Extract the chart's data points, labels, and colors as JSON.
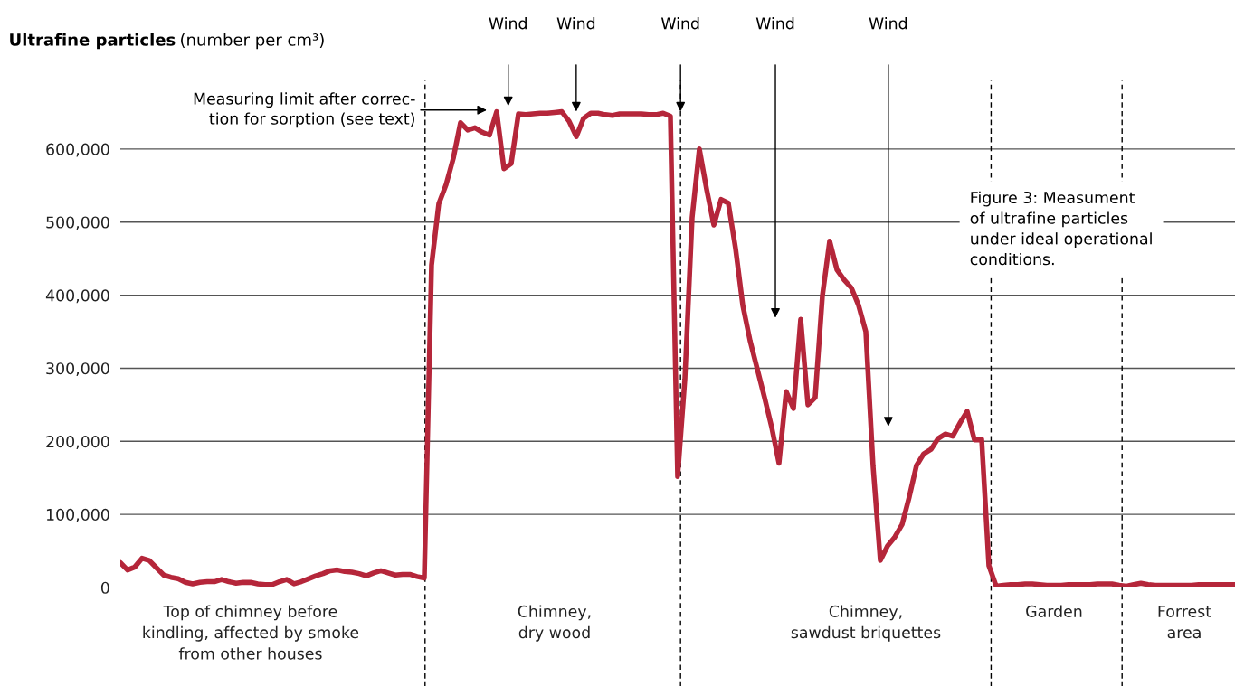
{
  "chart_data": {
    "type": "line",
    "title": "Ultrafine particles",
    "ylabel": "(number per cm³)",
    "categories": [
      null,
      null,
      null,
      null,
      null,
      null,
      null,
      null,
      null,
      null,
      null,
      null,
      null,
      null,
      null,
      null,
      null,
      null,
      "Top of chimney before\nkindling, affected by smoke\nfrom other houses",
      null,
      null,
      null,
      null,
      null,
      null,
      null,
      null,
      null,
      null,
      null,
      null,
      null,
      null,
      null,
      null,
      null,
      null,
      null,
      null,
      null,
      null,
      null,
      null,
      null,
      null,
      null,
      null,
      null,
      null,
      null,
      null,
      null,
      null,
      null,
      null,
      null,
      null,
      null,
      null,
      null,
      "Chimney,\ndry wood",
      null,
      null,
      null,
      null,
      null,
      null,
      null,
      null,
      null,
      null,
      null,
      null,
      null,
      null,
      null,
      null,
      null,
      null,
      null,
      null,
      null,
      null,
      null,
      null,
      null,
      null,
      null,
      null,
      null,
      null,
      null,
      null,
      null,
      null,
      null,
      null,
      null,
      null,
      null,
      null,
      null,
      null,
      "Chimney,\nsawdust briquettes",
      null,
      null,
      null,
      null,
      null,
      null,
      null,
      null,
      null,
      null,
      null,
      null,
      null,
      null,
      null,
      null,
      null,
      null,
      null,
      null,
      null,
      null,
      null,
      null,
      null,
      "Garden",
      null,
      null,
      null,
      null,
      null,
      null,
      null,
      null,
      null,
      null,
      null,
      null,
      null,
      null,
      null,
      null,
      null,
      "Forrest\narea",
      null,
      null,
      null,
      null,
      null,
      null,
      null
    ],
    "values": [
      34000,
      24000,
      28000,
      40000,
      37000,
      27000,
      17000,
      14000,
      12000,
      7000,
      5000,
      7000,
      8000,
      8000,
      11000,
      8000,
      6000,
      7000,
      7000,
      5000,
      4000,
      4000,
      8000,
      11000,
      5000,
      8000,
      12000,
      16000,
      19000,
      23000,
      24000,
      22000,
      21000,
      19000,
      16000,
      20000,
      23000,
      20000,
      17000,
      18000,
      18000,
      15000,
      13000,
      441000,
      525000,
      551000,
      587000,
      636000,
      626000,
      629000,
      623000,
      619000,
      651000,
      573000,
      580000,
      648000,
      647000,
      648000,
      649000,
      649000,
      650000,
      651000,
      638000,
      617000,
      642000,
      649000,
      649000,
      647000,
      646000,
      648000,
      648000,
      648000,
      648000,
      647000,
      647000,
      649000,
      645000,
      152000,
      285000,
      506000,
      600000,
      545000,
      496000,
      531000,
      526000,
      464000,
      386000,
      338000,
      299000,
      260000,
      219000,
      170000,
      268000,
      245000,
      367000,
      250000,
      260000,
      399000,
      474000,
      435000,
      421000,
      410000,
      386000,
      350000,
      166000,
      37000,
      57000,
      69000,
      86000,
      124000,
      167000,
      183000,
      189000,
      204000,
      210000,
      207000,
      225000,
      241000,
      202000,
      203000,
      30000,
      2000,
      3000,
      4000,
      4000,
      5000,
      5000,
      4000,
      3000,
      3000,
      3000,
      4000,
      4000,
      4000,
      4000,
      5000,
      5000,
      5000,
      3000,
      2000,
      4000,
      6000,
      4000,
      3000,
      3000,
      3000,
      3000,
      3000,
      3000,
      4000,
      4000,
      4000,
      4000,
      4000,
      4000
    ],
    "color": "#b5263a",
    "line_style": "solid",
    "marker": "none",
    "ylim": [
      0,
      695000
    ],
    "yticks": [
      {
        "value": 0,
        "label": "0"
      },
      {
        "value": 100000,
        "label": "100,000"
      },
      {
        "value": 200000,
        "label": "200,000"
      },
      {
        "value": 300000,
        "label": "300,000"
      },
      {
        "value": 400000,
        "label": "400,000"
      },
      {
        "value": 500000,
        "label": "500,000"
      },
      {
        "value": 600000,
        "label": "600,000"
      }
    ],
    "grid": "y",
    "annotations": [
      "Wind",
      "Wind",
      "Wind",
      "Wind",
      "Wind",
      "Measuring limit after correc-\ntion for sorption (see text)",
      "Figure 3: Measument\nof ultrafine particles\nunder ideal operational\nconditions."
    ]
  }
}
